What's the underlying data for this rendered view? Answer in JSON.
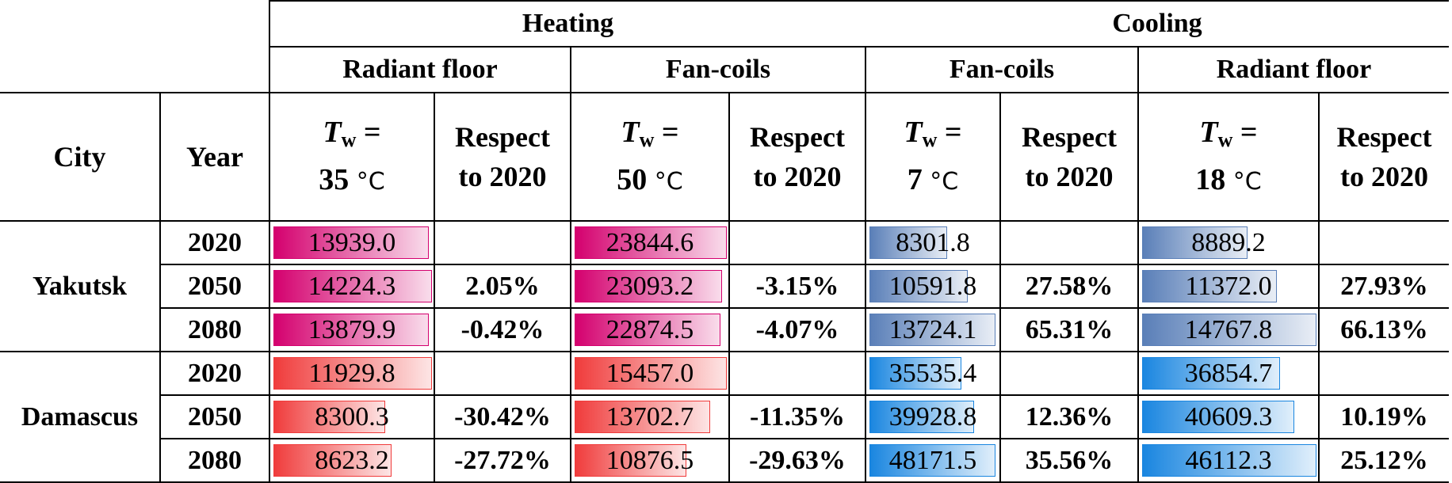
{
  "header": {
    "heating": "Heating",
    "cooling": "Cooling",
    "radiant_floor": "Radiant floor",
    "fan_coils": "Fan-coils",
    "city": "City",
    "year": "Year",
    "tw_symbol": "T",
    "tw_sub": "w",
    "tw_eq": "=",
    "deg": "°C",
    "t35": "35",
    "t50": "50",
    "t7": "7",
    "t18": "18",
    "respect_line1": "Respect",
    "respect_line2": "to 2020"
  },
  "cities": [
    "Yakutsk",
    "Damascus"
  ],
  "years": [
    "2020",
    "2050",
    "2080"
  ],
  "rows": [
    {
      "city": "Yakutsk",
      "year": "2020",
      "hr": "13939.0",
      "hr_p": "",
      "hf": "23844.6",
      "hf_p": "",
      "cf": "8301.8",
      "cf_p": "",
      "cr": "8889.2",
      "cr_p": ""
    },
    {
      "city": "Yakutsk",
      "year": "2050",
      "hr": "14224.3",
      "hr_p": "2.05%",
      "hf": "23093.2",
      "hf_p": "-3.15%",
      "cf": "10591.8",
      "cf_p": "27.58%",
      "cr": "11372.0",
      "cr_p": "27.93%"
    },
    {
      "city": "Yakutsk",
      "year": "2080",
      "hr": "13879.9",
      "hr_p": "-0.42%",
      "hf": "22874.5",
      "hf_p": "-4.07%",
      "cf": "13724.1",
      "cf_p": "65.31%",
      "cr": "14767.8",
      "cr_p": "66.13%"
    },
    {
      "city": "Damascus",
      "year": "2020",
      "hr": "11929.8",
      "hr_p": "",
      "hf": "15457.0",
      "hf_p": "",
      "cf": "35535.4",
      "cf_p": "",
      "cr": "36854.7",
      "cr_p": ""
    },
    {
      "city": "Damascus",
      "year": "2050",
      "hr": "8300.3",
      "hr_p": "-30.42%",
      "hf": "13702.7",
      "hf_p": "-11.35%",
      "cf": "39928.8",
      "cf_p": "12.36%",
      "cr": "40609.3",
      "cr_p": "10.19%"
    },
    {
      "city": "Damascus",
      "year": "2080",
      "hr": "8623.2",
      "hr_p": "-27.72%",
      "hf": "10876.5",
      "hf_p": "-29.63%",
      "cf": "48171.5",
      "cf_p": "35.56%",
      "cr": "46112.3",
      "cr_p": "25.12%"
    }
  ],
  "bar_fill": [
    {
      "hr": 0.98,
      "hf": 1.0,
      "cf": 0.6,
      "cr": 0.6
    },
    {
      "hr": 1.0,
      "hf": 0.97,
      "cf": 0.76,
      "cr": 0.77
    },
    {
      "hr": 0.98,
      "hf": 0.96,
      "cf": 0.98,
      "cr": 1.0
    },
    {
      "hr": 1.0,
      "hf": 1.0,
      "cf": 0.71,
      "cr": 0.79
    },
    {
      "hr": 0.7,
      "hf": 0.89,
      "cf": 0.81,
      "cr": 0.87
    },
    {
      "hr": 0.74,
      "hf": 0.73,
      "cf": 0.98,
      "cr": 1.0
    }
  ],
  "colors": {
    "yakutsk_heating": "#d4006e",
    "damascus_heating": "#f03c3c",
    "yakutsk_cooling": "#5a7fb8",
    "damascus_cooling": "#1a86e0"
  }
}
